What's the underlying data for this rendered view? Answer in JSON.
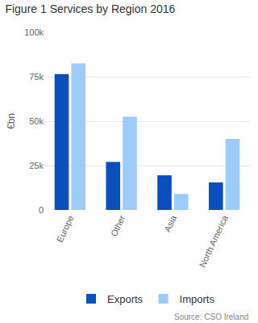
{
  "chart_data": {
    "type": "bar",
    "title": "Figure 1 Services by Region 2016",
    "y_label": "€bn",
    "categories": [
      "Europe",
      "Other",
      "Asia",
      "North America"
    ],
    "series": [
      {
        "name": "Exports",
        "color": "#0b4fbf",
        "values": [
          76500,
          27000,
          19500,
          15500
        ]
      },
      {
        "name": "Imports",
        "color": "#9dccfa",
        "values": [
          82500,
          52500,
          9000,
          40000
        ]
      }
    ],
    "ylim": [
      0,
      100000
    ],
    "yticks": [
      0,
      {
        "value": 25000,
        "label": "25k"
      },
      {
        "value": 50000,
        "label": "50k"
      },
      {
        "value": 75000,
        "label": "75k"
      },
      {
        "value": 100000,
        "label": "100k"
      }
    ],
    "grid": true,
    "legend": "bottom",
    "source": "Source: CSO Ireland"
  }
}
